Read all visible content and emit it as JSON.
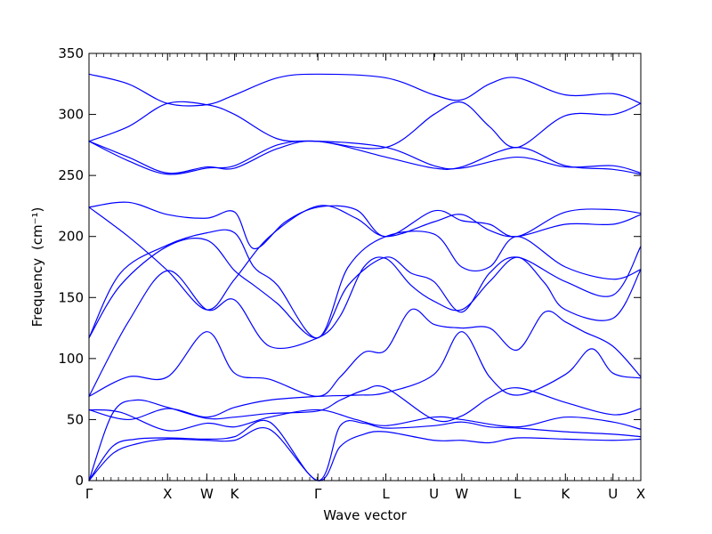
{
  "chart_data": {
    "type": "line",
    "title": "",
    "xlabel": "Wave vector",
    "ylabel": "Frequency",
    "ylabel_unit_html": "(cm⁻¹)",
    "ylim": [
      0,
      350
    ],
    "yticks": [
      0,
      50,
      100,
      150,
      200,
      250,
      300,
      350
    ],
    "grid": false,
    "line_color": "#0000ff",
    "kpoints": [
      {
        "label": "Γ",
        "x": 0.0
      },
      {
        "label": "X",
        "x": 1.0
      },
      {
        "label": "W",
        "x": 1.5
      },
      {
        "label": "K",
        "x": 1.854
      },
      {
        "label": "Γ",
        "x": 2.914
      },
      {
        "label": "L",
        "x": 3.78
      },
      {
        "label": "U",
        "x": 4.392
      },
      {
        "label": "W",
        "x": 4.746
      },
      {
        "label": "L",
        "x": 5.453
      },
      {
        "label": "K",
        "x": 6.066
      },
      {
        "label": "U",
        "x": 6.672
      },
      {
        "label": "X",
        "x": 7.026
      }
    ],
    "xlim": [
      0,
      7.026
    ],
    "bands": [
      {
        "name": "",
        "points": [
          [
            0,
            0
          ],
          [
            0.3,
            22
          ],
          [
            0.6,
            30
          ],
          [
            1.0,
            34
          ],
          [
            1.5,
            33
          ],
          [
            1.854,
            33
          ],
          [
            2.3,
            42
          ],
          [
            2.914,
            0
          ],
          [
            3.2,
            28
          ],
          [
            3.5,
            38
          ],
          [
            3.78,
            40
          ],
          [
            4.392,
            33
          ],
          [
            4.746,
            33
          ],
          [
            5.1,
            31
          ],
          [
            5.453,
            35
          ],
          [
            6.066,
            34
          ],
          [
            6.672,
            33
          ],
          [
            7.026,
            34
          ]
        ]
      },
      {
        "name": "",
        "points": [
          [
            0,
            0
          ],
          [
            0.3,
            28
          ],
          [
            0.6,
            34
          ],
          [
            1.0,
            35
          ],
          [
            1.5,
            34
          ],
          [
            1.854,
            36
          ],
          [
            2.3,
            48
          ],
          [
            2.914,
            0
          ],
          [
            3.2,
            45
          ],
          [
            3.5,
            47
          ],
          [
            3.78,
            43
          ],
          [
            4.392,
            45
          ],
          [
            4.746,
            48
          ],
          [
            5.1,
            44
          ],
          [
            5.453,
            43
          ],
          [
            6.066,
            40
          ],
          [
            6.672,
            38
          ],
          [
            7.026,
            36
          ]
        ]
      },
      {
        "name": "",
        "points": [
          [
            0,
            0
          ],
          [
            0.3,
            55
          ],
          [
            0.6,
            66
          ],
          [
            1.0,
            60
          ],
          [
            1.5,
            51
          ],
          [
            1.854,
            52
          ],
          [
            2.3,
            55
          ],
          [
            2.914,
            57
          ],
          [
            3.2,
            66
          ],
          [
            3.5,
            74
          ],
          [
            3.78,
            76
          ],
          [
            4.392,
            50
          ],
          [
            4.746,
            53
          ],
          [
            5.1,
            68
          ],
          [
            5.453,
            76
          ],
          [
            6.066,
            64
          ],
          [
            6.672,
            54
          ],
          [
            7.026,
            59
          ]
        ]
      },
      {
        "name": "",
        "points": [
          [
            0,
            58
          ],
          [
            0.4,
            56
          ],
          [
            1.0,
            41
          ],
          [
            1.5,
            47
          ],
          [
            1.854,
            44
          ],
          [
            2.3,
            52
          ],
          [
            2.914,
            58
          ],
          [
            3.4,
            50
          ],
          [
            3.78,
            45
          ],
          [
            4.392,
            52
          ],
          [
            4.746,
            50
          ],
          [
            5.453,
            44
          ],
          [
            6.066,
            52
          ],
          [
            6.672,
            48
          ],
          [
            7.026,
            42
          ]
        ]
      },
      {
        "name": "",
        "points": [
          [
            0,
            58
          ],
          [
            0.5,
            50
          ],
          [
            1.0,
            59
          ],
          [
            1.5,
            52
          ],
          [
            1.854,
            60
          ],
          [
            2.3,
            66
          ],
          [
            2.914,
            69
          ],
          [
            3.4,
            70
          ],
          [
            3.78,
            72
          ],
          [
            4.392,
            87
          ],
          [
            4.746,
            122
          ],
          [
            5.1,
            85
          ],
          [
            5.453,
            70
          ],
          [
            6.066,
            87
          ],
          [
            6.4,
            108
          ],
          [
            6.672,
            88
          ],
          [
            7.026,
            84
          ]
        ]
      },
      {
        "name": "",
        "points": [
          [
            0,
            69
          ],
          [
            0.5,
            85
          ],
          [
            1.0,
            85
          ],
          [
            1.5,
            122
          ],
          [
            1.854,
            88
          ],
          [
            2.3,
            83
          ],
          [
            2.914,
            69
          ],
          [
            3.2,
            85
          ],
          [
            3.5,
            105
          ],
          [
            3.78,
            107
          ],
          [
            4.1,
            140
          ],
          [
            4.392,
            128
          ],
          [
            4.746,
            125
          ],
          [
            5.1,
            125
          ],
          [
            5.453,
            107
          ],
          [
            5.8,
            138
          ],
          [
            6.066,
            130
          ],
          [
            6.3,
            122
          ],
          [
            6.672,
            110
          ],
          [
            7.026,
            85
          ]
        ]
      },
      {
        "name": "",
        "points": [
          [
            0,
            69
          ],
          [
            0.5,
            130
          ],
          [
            1.0,
            172
          ],
          [
            1.5,
            140
          ],
          [
            1.854,
            148
          ],
          [
            2.3,
            110
          ],
          [
            2.914,
            117
          ],
          [
            3.2,
            135
          ],
          [
            3.5,
            175
          ],
          [
            3.78,
            182
          ],
          [
            4.1,
            160
          ],
          [
            4.392,
            147
          ],
          [
            4.746,
            140
          ],
          [
            5.1,
            163
          ],
          [
            5.453,
            183
          ],
          [
            5.8,
            162
          ],
          [
            6.066,
            140
          ],
          [
            6.672,
            133
          ],
          [
            7.026,
            173
          ]
        ]
      },
      {
        "name": "",
        "points": [
          [
            0,
            117
          ],
          [
            0.4,
            160
          ],
          [
            1.0,
            192
          ],
          [
            1.5,
            197
          ],
          [
            1.854,
            172
          ],
          [
            2.1,
            160
          ],
          [
            2.4,
            145
          ],
          [
            2.914,
            117
          ],
          [
            3.3,
            160
          ],
          [
            3.78,
            183
          ],
          [
            4.1,
            170
          ],
          [
            4.392,
            163
          ],
          [
            4.746,
            138
          ],
          [
            5.1,
            170
          ],
          [
            5.453,
            183
          ],
          [
            6.066,
            163
          ],
          [
            6.672,
            152
          ],
          [
            7.026,
            192
          ]
        ]
      },
      {
        "name": "",
        "points": [
          [
            0,
            117
          ],
          [
            0.4,
            170
          ],
          [
            1.0,
            193
          ],
          [
            1.5,
            203
          ],
          [
            1.854,
            203
          ],
          [
            2.1,
            175
          ],
          [
            2.4,
            160
          ],
          [
            2.914,
            117
          ],
          [
            3.3,
            175
          ],
          [
            3.78,
            200
          ],
          [
            4.392,
            202
          ],
          [
            4.746,
            175
          ],
          [
            5.1,
            175
          ],
          [
            5.453,
            200
          ],
          [
            6.066,
            175
          ],
          [
            6.672,
            165
          ],
          [
            7.026,
            173
          ]
        ]
      },
      {
        "name": "",
        "points": [
          [
            0,
            224
          ],
          [
            0.5,
            200
          ],
          [
            1.0,
            172
          ],
          [
            1.5,
            140
          ],
          [
            1.854,
            165
          ],
          [
            2.3,
            200
          ],
          [
            2.914,
            225
          ],
          [
            3.4,
            215
          ],
          [
            3.78,
            200
          ],
          [
            4.392,
            212
          ],
          [
            4.746,
            218
          ],
          [
            5.1,
            205
          ],
          [
            5.453,
            200
          ],
          [
            6.066,
            210
          ],
          [
            6.672,
            210
          ],
          [
            7.026,
            218
          ]
        ]
      },
      {
        "name": "",
        "points": [
          [
            0,
            224
          ],
          [
            0.5,
            228
          ],
          [
            1.0,
            218
          ],
          [
            1.5,
            215
          ],
          [
            1.854,
            220
          ],
          [
            2.1,
            190
          ],
          [
            2.5,
            212
          ],
          [
            2.914,
            224
          ],
          [
            3.4,
            222
          ],
          [
            3.78,
            200
          ],
          [
            4.392,
            221
          ],
          [
            4.746,
            213
          ],
          [
            5.1,
            210
          ],
          [
            5.453,
            200
          ],
          [
            6.066,
            220
          ],
          [
            6.672,
            222
          ],
          [
            7.026,
            219
          ]
        ]
      },
      {
        "name": "",
        "points": [
          [
            0,
            278
          ],
          [
            0.5,
            262
          ],
          [
            1.0,
            251
          ],
          [
            1.5,
            256
          ],
          [
            1.854,
            258
          ],
          [
            2.4,
            275
          ],
          [
            2.914,
            278
          ],
          [
            3.78,
            273
          ],
          [
            4.392,
            258
          ],
          [
            4.746,
            256
          ],
          [
            5.453,
            265
          ],
          [
            6.066,
            257
          ],
          [
            6.672,
            258
          ],
          [
            7.026,
            252
          ]
        ]
      },
      {
        "name": "",
        "points": [
          [
            0,
            278
          ],
          [
            0.5,
            265
          ],
          [
            1.0,
            252
          ],
          [
            1.5,
            257
          ],
          [
            1.854,
            256
          ],
          [
            2.4,
            272
          ],
          [
            2.914,
            278
          ],
          [
            3.78,
            265
          ],
          [
            4.392,
            256
          ],
          [
            4.746,
            257
          ],
          [
            5.453,
            273
          ],
          [
            6.066,
            258
          ],
          [
            6.672,
            255
          ],
          [
            7.026,
            251
          ]
        ]
      },
      {
        "name": "",
        "points": [
          [
            0,
            278
          ],
          [
            0.5,
            290
          ],
          [
            1.0,
            309
          ],
          [
            1.5,
            308
          ],
          [
            1.854,
            300
          ],
          [
            2.4,
            280
          ],
          [
            2.914,
            278
          ],
          [
            3.78,
            273
          ],
          [
            4.392,
            300
          ],
          [
            4.746,
            310
          ],
          [
            5.1,
            290
          ],
          [
            5.453,
            273
          ],
          [
            6.066,
            299
          ],
          [
            6.672,
            300
          ],
          [
            7.026,
            309
          ]
        ]
      },
      {
        "name": "",
        "points": [
          [
            0,
            333
          ],
          [
            0.5,
            325
          ],
          [
            1.0,
            309
          ],
          [
            1.5,
            308
          ],
          [
            1.854,
            316
          ],
          [
            2.4,
            330
          ],
          [
            2.914,
            333
          ],
          [
            3.78,
            330
          ],
          [
            4.392,
            316
          ],
          [
            4.746,
            312
          ],
          [
            5.1,
            325
          ],
          [
            5.453,
            330
          ],
          [
            6.066,
            316
          ],
          [
            6.672,
            317
          ],
          [
            7.026,
            309
          ]
        ]
      }
    ]
  }
}
